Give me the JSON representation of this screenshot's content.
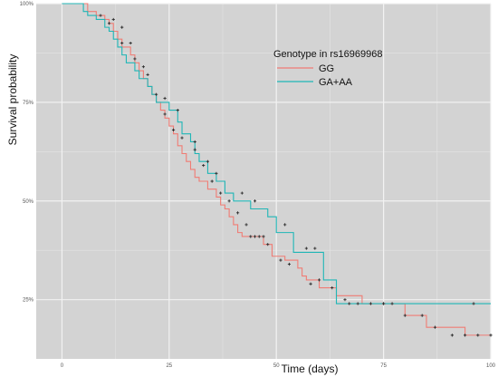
{
  "chart_data": {
    "type": "line",
    "subtype": "kaplan-meier-step",
    "title": "",
    "xlabel": "Time (days)",
    "ylabel": "Survival probability",
    "xlim": [
      -6,
      100
    ],
    "ylim": [
      0.1,
      1.0
    ],
    "x_ticks": [
      {
        "value": 0,
        "label": "0"
      },
      {
        "value": 25,
        "label": "25"
      },
      {
        "value": 50,
        "label": "50"
      },
      {
        "value": 75,
        "label": "75"
      },
      {
        "value": 100,
        "label": "100"
      }
    ],
    "y_ticks": [
      {
        "value": 0.25,
        "label": "25%"
      },
      {
        "value": 0.5,
        "label": "50%"
      },
      {
        "value": 0.75,
        "label": "75%"
      },
      {
        "value": 1.0,
        "label": "100%"
      }
    ],
    "grid": true,
    "background": "#d3d3d3",
    "legend": {
      "title": "Genotype  in rs16969968",
      "placement": "top-right"
    },
    "series": [
      {
        "name": "GG",
        "color": "#f07c74",
        "steps": [
          [
            0,
            1.0
          ],
          [
            6,
            0.98
          ],
          [
            8,
            0.97
          ],
          [
            10,
            0.96
          ],
          [
            11,
            0.95
          ],
          [
            12,
            0.93
          ],
          [
            13,
            0.91
          ],
          [
            14,
            0.89
          ],
          [
            16,
            0.87
          ],
          [
            17,
            0.85
          ],
          [
            18,
            0.83
          ],
          [
            19,
            0.81
          ],
          [
            20,
            0.79
          ],
          [
            21,
            0.77
          ],
          [
            22,
            0.75
          ],
          [
            23,
            0.73
          ],
          [
            24,
            0.71
          ],
          [
            25,
            0.69
          ],
          [
            26,
            0.67
          ],
          [
            27,
            0.64
          ],
          [
            28,
            0.62
          ],
          [
            29,
            0.6
          ],
          [
            30,
            0.58
          ],
          [
            31,
            0.56
          ],
          [
            32,
            0.55
          ],
          [
            34,
            0.53
          ],
          [
            36,
            0.51
          ],
          [
            37,
            0.49
          ],
          [
            38,
            0.48
          ],
          [
            39,
            0.46
          ],
          [
            40,
            0.44
          ],
          [
            41,
            0.42
          ],
          [
            42,
            0.41
          ],
          [
            47,
            0.39
          ],
          [
            49,
            0.36
          ],
          [
            52,
            0.35
          ],
          [
            55,
            0.33
          ],
          [
            56,
            0.31
          ],
          [
            57,
            0.3
          ],
          [
            60,
            0.28
          ],
          [
            64,
            0.26
          ],
          [
            70,
            0.24
          ],
          [
            80,
            0.21
          ],
          [
            85,
            0.18
          ],
          [
            94,
            0.16
          ],
          [
            100,
            0.16
          ]
        ],
        "censors": [
          [
            9,
            0.97
          ],
          [
            12,
            0.96
          ],
          [
            14,
            0.94
          ],
          [
            16,
            0.9
          ],
          [
            19,
            0.84
          ],
          [
            22,
            0.77
          ],
          [
            24,
            0.72
          ],
          [
            26,
            0.68
          ],
          [
            28,
            0.66
          ],
          [
            31,
            0.63
          ],
          [
            33,
            0.59
          ],
          [
            35,
            0.55
          ],
          [
            37,
            0.52
          ],
          [
            39,
            0.5
          ],
          [
            41,
            0.47
          ],
          [
            43,
            0.44
          ],
          [
            44,
            0.41
          ],
          [
            45,
            0.41
          ],
          [
            46,
            0.41
          ],
          [
            47,
            0.41
          ],
          [
            48,
            0.39
          ],
          [
            51,
            0.35
          ],
          [
            53,
            0.34
          ],
          [
            58,
            0.29
          ],
          [
            60,
            0.3
          ],
          [
            63,
            0.28
          ],
          [
            66,
            0.25
          ],
          [
            69,
            0.24
          ],
          [
            72,
            0.24
          ],
          [
            75,
            0.24
          ],
          [
            77,
            0.24
          ],
          [
            80,
            0.21
          ],
          [
            84,
            0.21
          ],
          [
            87,
            0.18
          ],
          [
            91,
            0.16
          ],
          [
            94,
            0.16
          ],
          [
            97,
            0.16
          ],
          [
            100,
            0.16
          ]
        ]
      },
      {
        "name": "GA+AA",
        "color": "#1fb6b6",
        "steps": [
          [
            0,
            1.0
          ],
          [
            5,
            0.98
          ],
          [
            6,
            0.97
          ],
          [
            8,
            0.96
          ],
          [
            10,
            0.94
          ],
          [
            11,
            0.93
          ],
          [
            12,
            0.91
          ],
          [
            13,
            0.89
          ],
          [
            14,
            0.87
          ],
          [
            15,
            0.85
          ],
          [
            17,
            0.83
          ],
          [
            18,
            0.81
          ],
          [
            20,
            0.79
          ],
          [
            21,
            0.77
          ],
          [
            22,
            0.75
          ],
          [
            25,
            0.73
          ],
          [
            27,
            0.7
          ],
          [
            28,
            0.67
          ],
          [
            30,
            0.65
          ],
          [
            31,
            0.62
          ],
          [
            32,
            0.6
          ],
          [
            34,
            0.57
          ],
          [
            36,
            0.55
          ],
          [
            38,
            0.52
          ],
          [
            40,
            0.5
          ],
          [
            44,
            0.48
          ],
          [
            48,
            0.46
          ],
          [
            50,
            0.42
          ],
          [
            54,
            0.37
          ],
          [
            61,
            0.3
          ],
          [
            64,
            0.24
          ],
          [
            100,
            0.24
          ]
        ],
        "censors": [
          [
            11,
            0.95
          ],
          [
            14,
            0.9
          ],
          [
            17,
            0.86
          ],
          [
            20,
            0.82
          ],
          [
            24,
            0.76
          ],
          [
            27,
            0.73
          ],
          [
            31,
            0.65
          ],
          [
            34,
            0.6
          ],
          [
            36,
            0.57
          ],
          [
            42,
            0.52
          ],
          [
            45,
            0.5
          ],
          [
            52,
            0.44
          ],
          [
            57,
            0.38
          ],
          [
            59,
            0.38
          ],
          [
            67,
            0.24
          ],
          [
            75,
            0.24
          ],
          [
            96,
            0.24
          ]
        ]
      }
    ]
  }
}
